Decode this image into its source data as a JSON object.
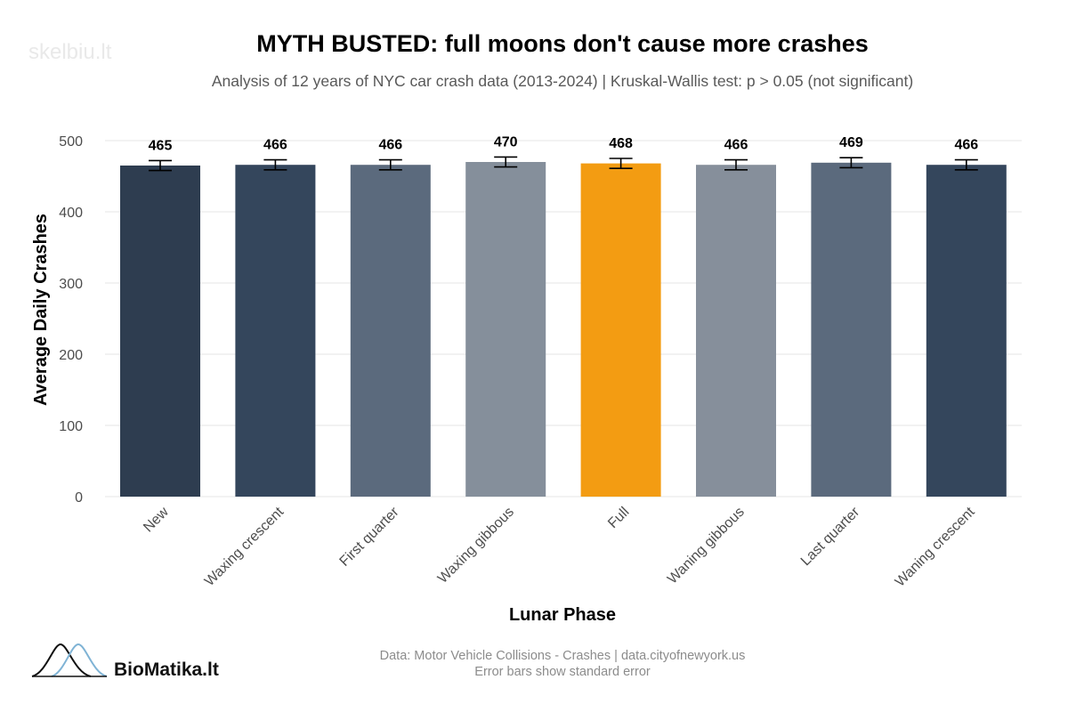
{
  "watermark": "skelbiu.lt",
  "brand": {
    "name": "BioMatika.lt"
  },
  "caption": {
    "line1": "Data: Motor Vehicle Collisions - Crashes | data.cityofnewyork.us",
    "line2": "Error bars show standard error"
  },
  "chart_data": {
    "type": "bar",
    "title": "MYTH BUSTED: full moons don't cause more crashes",
    "subtitle": "Analysis of 12 years of NYC car crash data (2013-2024) | Kruskal-Wallis test: p > 0.05 (not significant)",
    "xlabel": "Lunar Phase",
    "ylabel": "Average Daily Crashes",
    "ylim": [
      0,
      500
    ],
    "yticks": [
      0,
      100,
      200,
      300,
      400,
      500
    ],
    "grid": true,
    "legend": "none",
    "categories": [
      "New",
      "Waxing crescent",
      "First quarter",
      "Waxing gibbous",
      "Full",
      "Waning gibbous",
      "Last quarter",
      "Waning crescent"
    ],
    "values": [
      465,
      466,
      466,
      470,
      468,
      466,
      469,
      466
    ],
    "data_labels": [
      "465",
      "466",
      "466",
      "470",
      "468",
      "466",
      "469",
      "466"
    ],
    "std_error": [
      7,
      7,
      7,
      7,
      7,
      7,
      7,
      7
    ],
    "colors": [
      "#2e3d50",
      "#34465c",
      "#5b6a7d",
      "#858f9b",
      "#f39c12",
      "#868f9b",
      "#5b6a7d",
      "#34465c"
    ]
  }
}
